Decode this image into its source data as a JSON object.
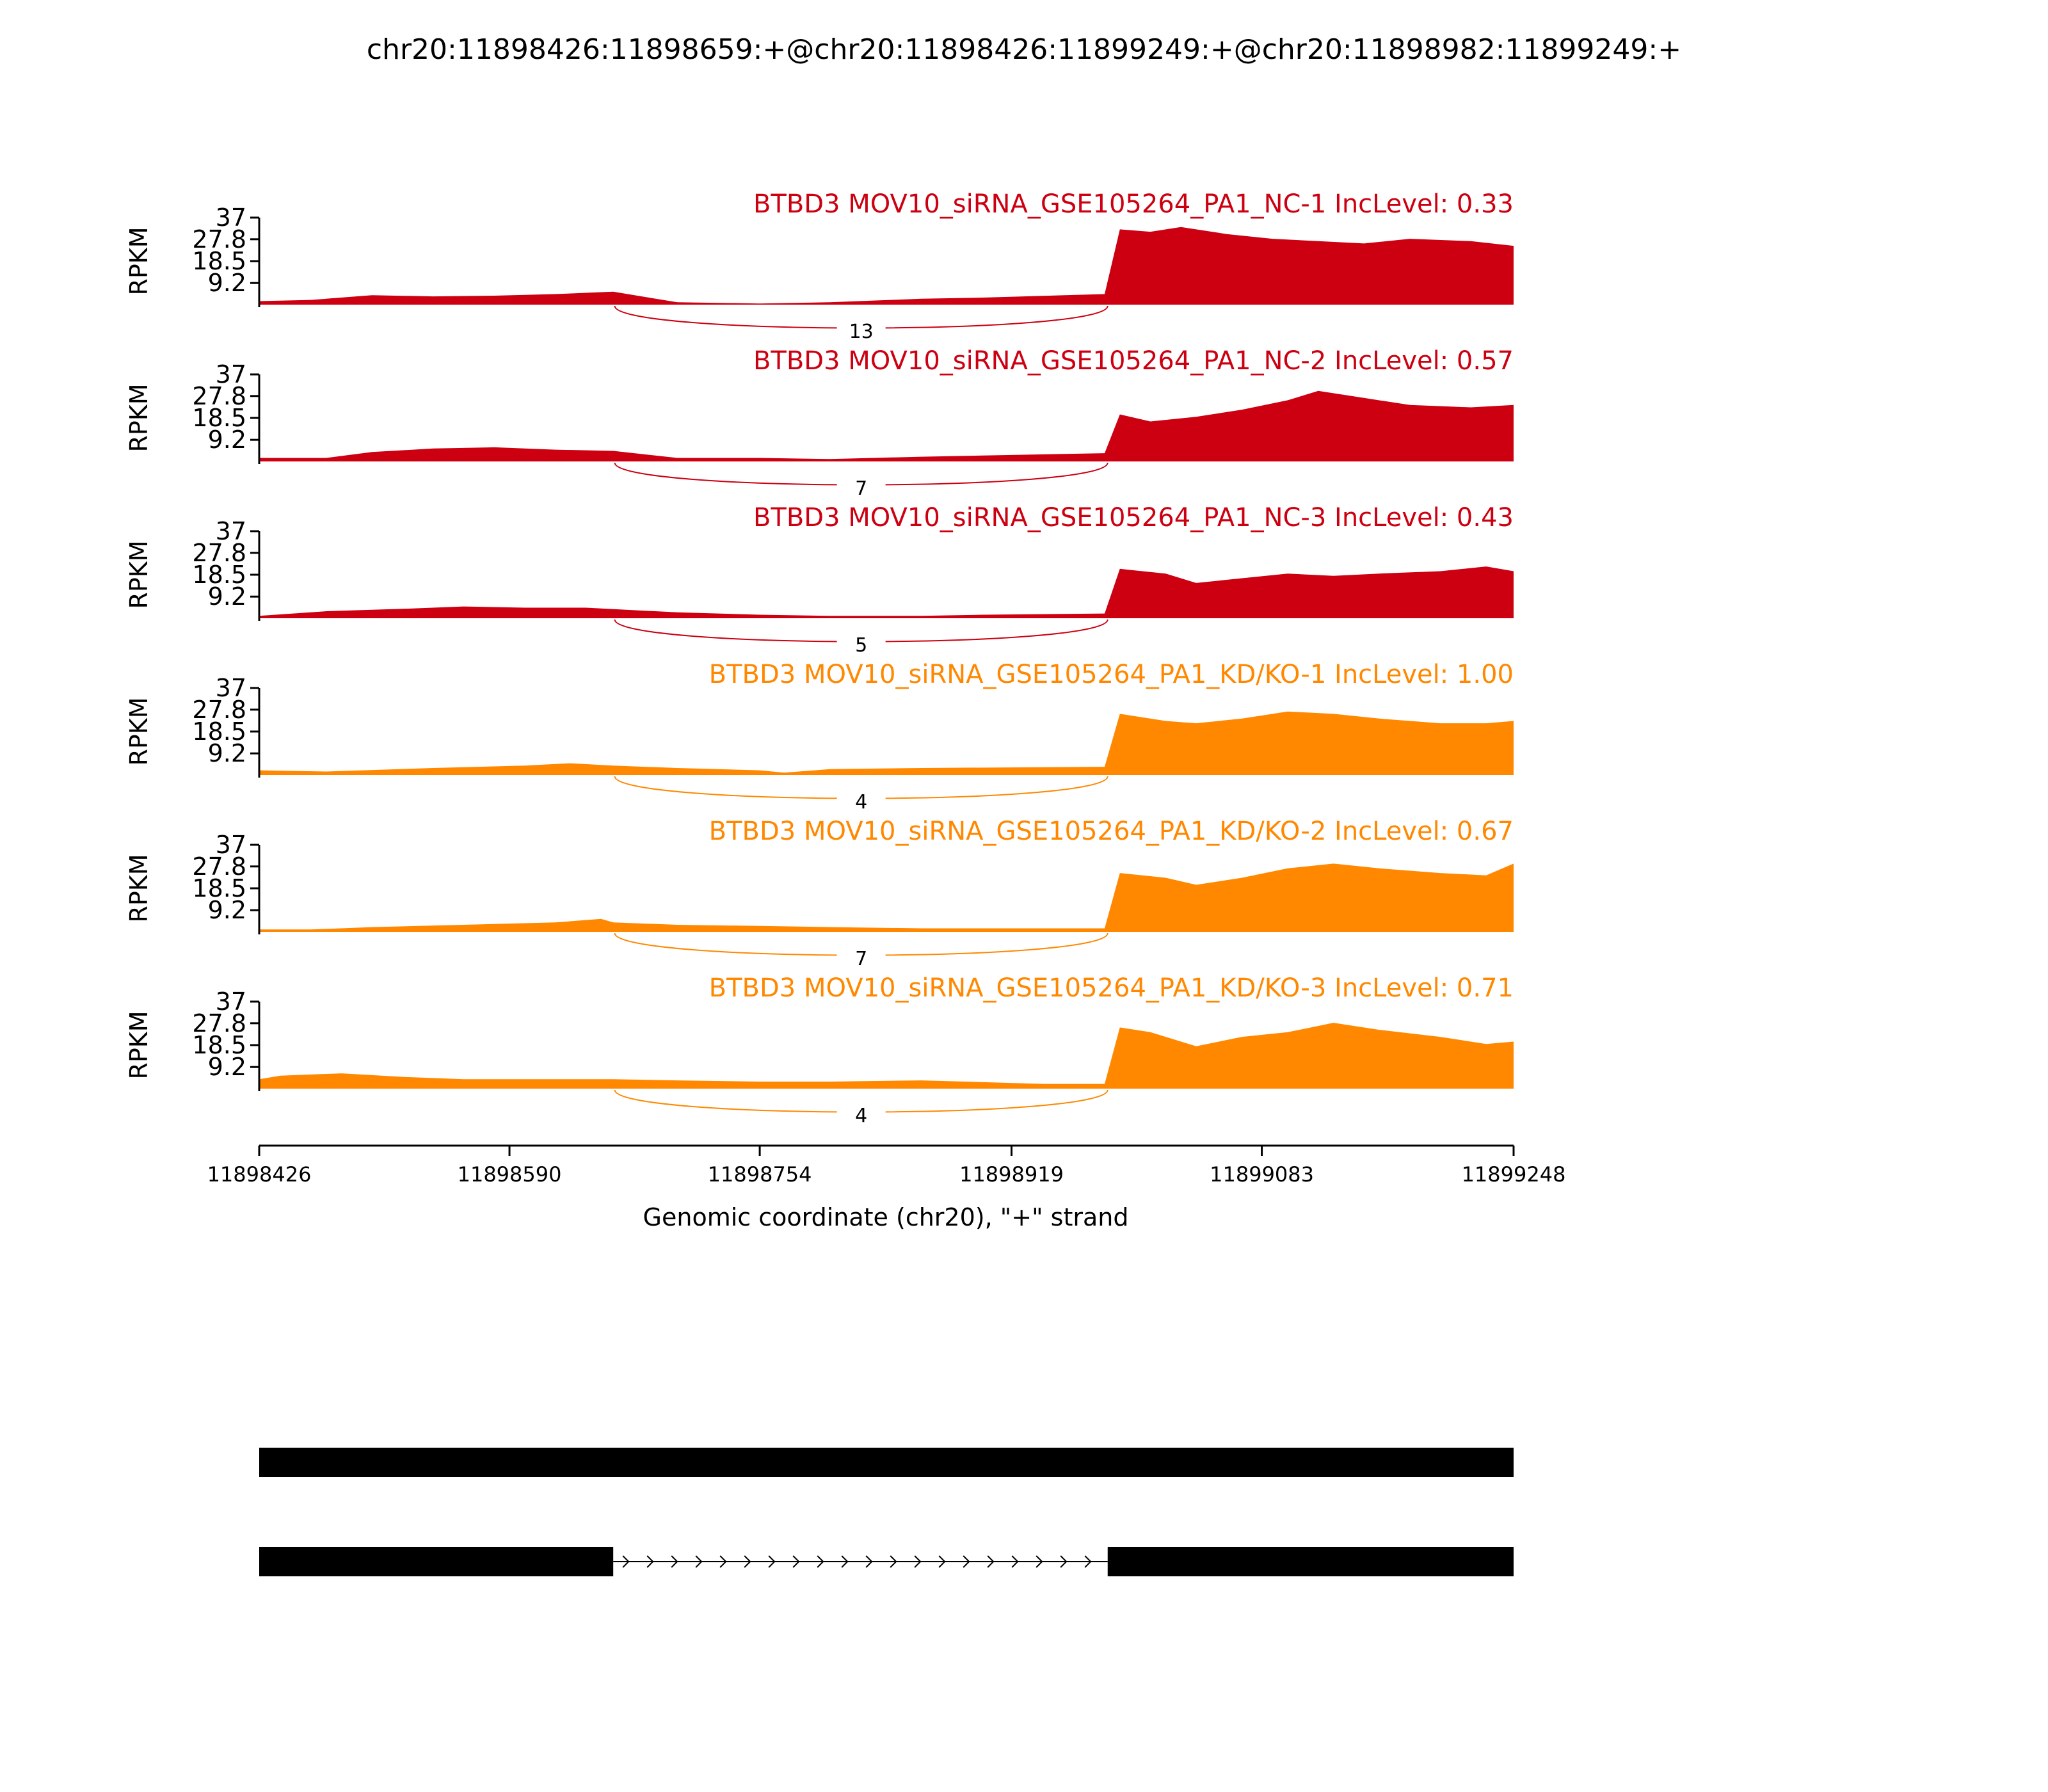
{
  "figure": {
    "title": "chr20:11898426:11898659:+@chr20:11898426:11899249:+@chr20:11898982:11899249:+"
  },
  "colors": {
    "control": "#CC0011",
    "knockdown": "#FF8800",
    "axis": "#000000",
    "gene_model": "#000000"
  },
  "chart_data": {
    "type": "area",
    "genomic_range": [
      11898426,
      11899248
    ],
    "x_ticks": [
      11898426,
      11898590,
      11898754,
      11898919,
      11899083,
      11899248
    ],
    "x_tick_labels": [
      "11898426",
      "11898590",
      "11898754",
      "11898919",
      "11899083",
      "11899248"
    ],
    "xlabel": "Genomic coordinate (chr20), \"+\" strand",
    "ylabel": "RPKM",
    "y_ticks": [
      9.2,
      18.5,
      27.8,
      37
    ],
    "y_tick_labels": [
      "9.2",
      "18.5",
      "27.8",
      "37"
    ],
    "ylim": [
      0,
      37
    ],
    "exon_boundaries": [
      11898659,
      11898982
    ],
    "tracks": [
      {
        "label": "BTBD3 MOV10_siRNA_GSE105264_PA1_NC-1 IncLevel: 0.33",
        "group": "control",
        "junction_count": "13",
        "x": [
          11898426,
          11898460,
          11898500,
          11898540,
          11898580,
          11898620,
          11898658,
          11898700,
          11898754,
          11898800,
          11898860,
          11898900,
          11898980,
          11898990,
          11899010,
          11899030,
          11899060,
          11899090,
          11899120,
          11899150,
          11899180,
          11899220,
          11899248
        ],
        "y": [
          1.5,
          2,
          4,
          3.5,
          3.8,
          4.5,
          5.5,
          1,
          0.5,
          1,
          2.5,
          3,
          4.5,
          32,
          31,
          33,
          30,
          28,
          27,
          26,
          28,
          27,
          25
        ]
      },
      {
        "label": "BTBD3 MOV10_siRNA_GSE105264_PA1_NC-2 IncLevel: 0.57",
        "group": "control",
        "junction_count": "7",
        "x": [
          11898426,
          11898470,
          11898500,
          11898540,
          11898580,
          11898620,
          11898658,
          11898700,
          11898754,
          11898800,
          11898860,
          11898900,
          11898980,
          11898990,
          11899010,
          11899040,
          11899070,
          11899100,
          11899120,
          11899150,
          11899180,
          11899220,
          11899248
        ],
        "y": [
          1.5,
          1.5,
          4,
          5.5,
          6,
          5,
          4.5,
          1.5,
          1.5,
          1,
          2,
          2.5,
          3.5,
          20,
          17,
          19,
          22,
          26,
          30,
          27,
          24,
          23,
          24
        ]
      },
      {
        "label": "BTBD3 MOV10_siRNA_GSE105264_PA1_NC-3 IncLevel: 0.43",
        "group": "control",
        "junction_count": "5",
        "x": [
          11898426,
          11898470,
          11898520,
          11898560,
          11898600,
          11898640,
          11898700,
          11898754,
          11898800,
          11898860,
          11898900,
          11898980,
          11898990,
          11899020,
          11899040,
          11899070,
          11899100,
          11899130,
          11899160,
          11899200,
          11899230,
          11899248
        ],
        "y": [
          1,
          3,
          4,
          5,
          4.5,
          4.5,
          2.5,
          1.5,
          1,
          1,
          1.5,
          2,
          21,
          19,
          15,
          17,
          19,
          18,
          19,
          20,
          22,
          20
        ]
      },
      {
        "label": "BTBD3 MOV10_siRNA_GSE105264_PA1_KD/KO-1 IncLevel: 1.00",
        "group": "knockdown",
        "junction_count": "4",
        "x": [
          11898426,
          11898470,
          11898540,
          11898600,
          11898630,
          11898658,
          11898700,
          11898754,
          11898770,
          11898800,
          11898860,
          11898980,
          11898990,
          11899020,
          11899040,
          11899070,
          11899100,
          11899130,
          11899160,
          11899200,
          11899230,
          11899248
        ],
        "y": [
          2,
          1.5,
          3,
          4,
          5,
          4,
          3,
          2,
          1,
          2.5,
          3,
          3.5,
          26,
          23,
          22,
          24,
          27,
          26,
          24,
          22,
          22,
          23
        ]
      },
      {
        "label": "BTBD3 MOV10_siRNA_GSE105264_PA1_KD/KO-2 IncLevel: 0.67",
        "group": "knockdown",
        "junction_count": "7",
        "x": [
          11898426,
          11898460,
          11898500,
          11898560,
          11898620,
          11898650,
          11898658,
          11898700,
          11898754,
          11898800,
          11898860,
          11898920,
          11898980,
          11898990,
          11899020,
          11899040,
          11899070,
          11899100,
          11899130,
          11899160,
          11899200,
          11899230,
          11899248
        ],
        "y": [
          1,
          1,
          2,
          3,
          4,
          5.5,
          4,
          3,
          2.5,
          2,
          1.5,
          1.5,
          1.5,
          25,
          23,
          20,
          23,
          27,
          29,
          27,
          25,
          24,
          29
        ]
      },
      {
        "label": "BTBD3 MOV10_siRNA_GSE105264_PA1_KD/KO-3 IncLevel: 0.71",
        "group": "knockdown",
        "junction_count": "4",
        "x": [
          11898426,
          11898440,
          11898480,
          11898520,
          11898560,
          11898620,
          11898658,
          11898700,
          11898754,
          11898800,
          11898860,
          11898940,
          11898980,
          11898990,
          11899010,
          11899040,
          11899070,
          11899100,
          11899130,
          11899160,
          11899200,
          11899230,
          11899248
        ],
        "y": [
          4,
          5.5,
          6.5,
          5,
          4,
          4,
          4,
          3.5,
          3,
          3,
          3.5,
          2,
          2,
          26,
          24,
          18,
          22,
          24,
          28,
          25,
          22,
          19,
          20
        ]
      }
    ],
    "gene_model": {
      "isoforms": [
        {
          "exons": [
            [
              11898426,
              11899248
            ]
          ]
        },
        {
          "exons": [
            [
              11898426,
              11898658
            ],
            [
              11898982,
              11899248
            ]
          ]
        }
      ]
    }
  }
}
